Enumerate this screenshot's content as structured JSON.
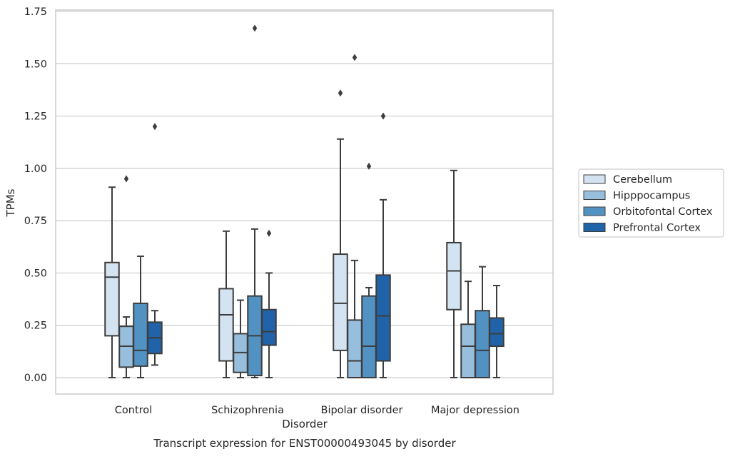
{
  "chart_data": {
    "type": "boxplot",
    "xlabel": "Disorder",
    "ylabel": "TPMs",
    "caption": "Transcript expression for ENST00000493045 by disorder",
    "ylim": [
      -0.08,
      1.77
    ],
    "yticks": [
      0.0,
      0.25,
      0.5,
      0.75,
      1.0,
      1.25,
      1.5,
      1.75
    ],
    "ytick_labels": [
      "0.00",
      "0.25",
      "0.50",
      "0.75",
      "1.00",
      "1.25",
      "1.50",
      "1.75"
    ],
    "grid": "horizontal",
    "legend_position": "right",
    "categories": [
      "Control",
      "Schizophrenia",
      "Bipolar disorder",
      "Major depression"
    ],
    "series": [
      {
        "name": "Cerebellum",
        "color": "#d4e3f2",
        "boxes": [
          {
            "min": 0.0,
            "q1": 0.2,
            "median": 0.48,
            "q3": 0.55,
            "max": 0.91,
            "outliers": []
          },
          {
            "min": 0.0,
            "q1": 0.08,
            "median": 0.3,
            "q3": 0.425,
            "max": 0.7,
            "outliers": []
          },
          {
            "min": 0.0,
            "q1": 0.13,
            "median": 0.355,
            "q3": 0.59,
            "max": 1.14,
            "outliers": [
              1.36
            ]
          },
          {
            "min": 0.0,
            "q1": 0.325,
            "median": 0.51,
            "q3": 0.645,
            "max": 0.99,
            "outliers": []
          }
        ]
      },
      {
        "name": "Hipppocampus",
        "color": "#97bedc",
        "boxes": [
          {
            "min": 0.0,
            "q1": 0.05,
            "median": 0.15,
            "q3": 0.245,
            "max": 0.29,
            "outliers": [
              0.95
            ]
          },
          {
            "min": 0.0,
            "q1": 0.025,
            "median": 0.12,
            "q3": 0.21,
            "max": 0.37,
            "outliers": []
          },
          {
            "min": 0.0,
            "q1": 0.0,
            "median": 0.08,
            "q3": 0.275,
            "max": 0.56,
            "outliers": [
              1.53
            ]
          },
          {
            "min": 0.0,
            "q1": 0.0,
            "median": 0.15,
            "q3": 0.255,
            "max": 0.46,
            "outliers": []
          }
        ]
      },
      {
        "name": "Orbitofontal Cortex",
        "color": "#5292c3",
        "boxes": [
          {
            "min": 0.0,
            "q1": 0.055,
            "median": 0.13,
            "q3": 0.355,
            "max": 0.58,
            "outliers": []
          },
          {
            "min": 0.0,
            "q1": 0.01,
            "median": 0.2,
            "q3": 0.39,
            "max": 0.71,
            "outliers": [
              1.67
            ]
          },
          {
            "min": 0.0,
            "q1": 0.0,
            "median": 0.15,
            "q3": 0.39,
            "max": 0.43,
            "outliers": [
              1.01
            ]
          },
          {
            "min": 0.0,
            "q1": 0.0,
            "median": 0.13,
            "q3": 0.32,
            "max": 0.53,
            "outliers": []
          }
        ]
      },
      {
        "name": "Prefrontal Cortex",
        "color": "#2163a8",
        "boxes": [
          {
            "min": 0.06,
            "q1": 0.115,
            "median": 0.19,
            "q3": 0.265,
            "max": 0.32,
            "outliers": [
              1.2
            ]
          },
          {
            "min": 0.0,
            "q1": 0.155,
            "median": 0.22,
            "q3": 0.325,
            "max": 0.5,
            "outliers": [
              0.69
            ]
          },
          {
            "min": 0.0,
            "q1": 0.08,
            "median": 0.295,
            "q3": 0.49,
            "max": 0.85,
            "outliers": [
              1.25
            ]
          },
          {
            "min": 0.0,
            "q1": 0.15,
            "median": 0.21,
            "q3": 0.285,
            "max": 0.44,
            "outliers": []
          }
        ]
      }
    ]
  }
}
